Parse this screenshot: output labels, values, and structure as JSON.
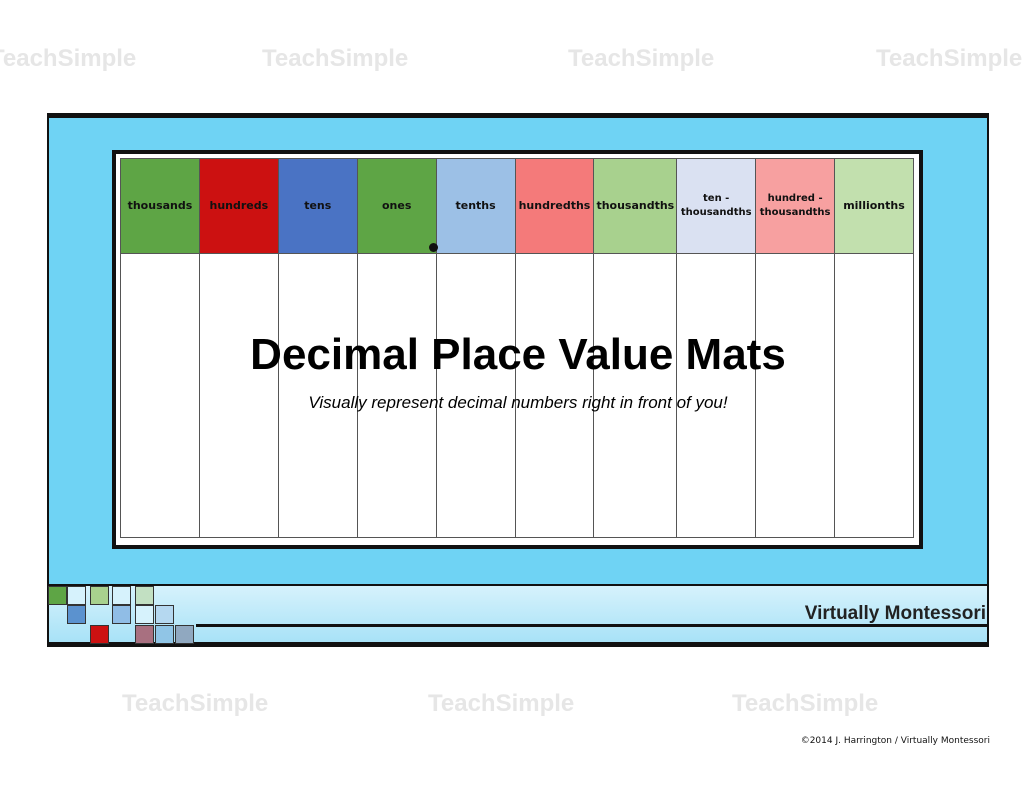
{
  "title": "Decimal Place Value Mats",
  "subtitle": "Visually represent decimal numbers right in front of you!",
  "brand": "Virtually Montessori",
  "copyright": "©2014 J. Harrington / Virtually Montessori",
  "watermark": "TeachSimple",
  "columns": [
    {
      "label": "thousands",
      "color": "#5ea545"
    },
    {
      "label": "hundreds",
      "color": "#cc1111"
    },
    {
      "label": "tens",
      "color": "#4a73c4"
    },
    {
      "label": "ones",
      "color": "#5ea545"
    },
    {
      "label": "tenths",
      "color": "#9cc0e6"
    },
    {
      "label": "hundredths",
      "color": "#f47a7a"
    },
    {
      "label": "thousandths",
      "color": "#a8d18e"
    },
    {
      "label": "ten - thousandths",
      "color": "#dae1f2"
    },
    {
      "label": "hundred - thousandths",
      "color": "#f7a0a0"
    },
    {
      "label": "millionths",
      "color": "#c2e0ae"
    }
  ],
  "colors": {
    "panel": "#6fd3f4",
    "frame": "#111111"
  }
}
